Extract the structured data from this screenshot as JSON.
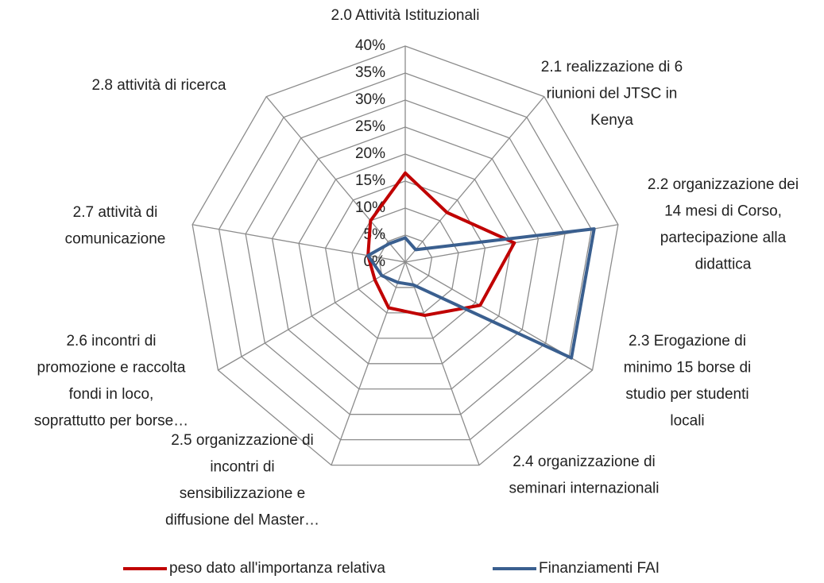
{
  "chart_data": {
    "type": "radar",
    "categories": [
      [
        "2.0 Attività  Istituzionali"
      ],
      [
        "2.1 realizzazione di 6",
        "riunioni del JTSC in",
        "Kenya"
      ],
      [
        "2.2 organizzazione dei",
        "14 mesi di Corso,",
        "partecipazione alla",
        "didattica"
      ],
      [
        "2.3 Erogazione di",
        "minimo 15 borse di",
        "studio per studenti",
        "locali"
      ],
      [
        "2.4 organizzazione di",
        "seminari internazionali"
      ],
      [
        "2.5 organizzazione di",
        "incontri di",
        "sensibilizzazione e",
        "diffusione del Master…"
      ],
      [
        "2.6 incontri di",
        "promozione e raccolta",
        "fondi in loco,",
        "soprattutto per borse…"
      ],
      [
        "2.7 attività di",
        "comunicazione"
      ],
      [
        "2.8 attività di ricerca"
      ]
    ],
    "series": [
      {
        "name": "peso dato all'importanza relativa",
        "color": "#c00000",
        "values": [
          16.5,
          12,
          20.5,
          16,
          10.5,
          9,
          6.5,
          7,
          10
        ]
      },
      {
        "name": "Finanziamenti FAI",
        "color": "#3a5f8f",
        "values": [
          4.5,
          3,
          35.5,
          35.5,
          4.5,
          4,
          5,
          7,
          4.5
        ]
      }
    ],
    "ylim": [
      0,
      40
    ],
    "yticks": [
      {
        "value": 0,
        "label": "0%"
      },
      {
        "value": 5,
        "label": "5%"
      },
      {
        "value": 10,
        "label": "10%"
      },
      {
        "value": 15,
        "label": "15%"
      },
      {
        "value": 20,
        "label": "20%"
      },
      {
        "value": 25,
        "label": "25%"
      },
      {
        "value": 30,
        "label": "30%"
      },
      {
        "value": 35,
        "label": "35%"
      },
      {
        "value": 40,
        "label": "40%"
      }
    ],
    "grid": true,
    "legend": "bottom"
  }
}
